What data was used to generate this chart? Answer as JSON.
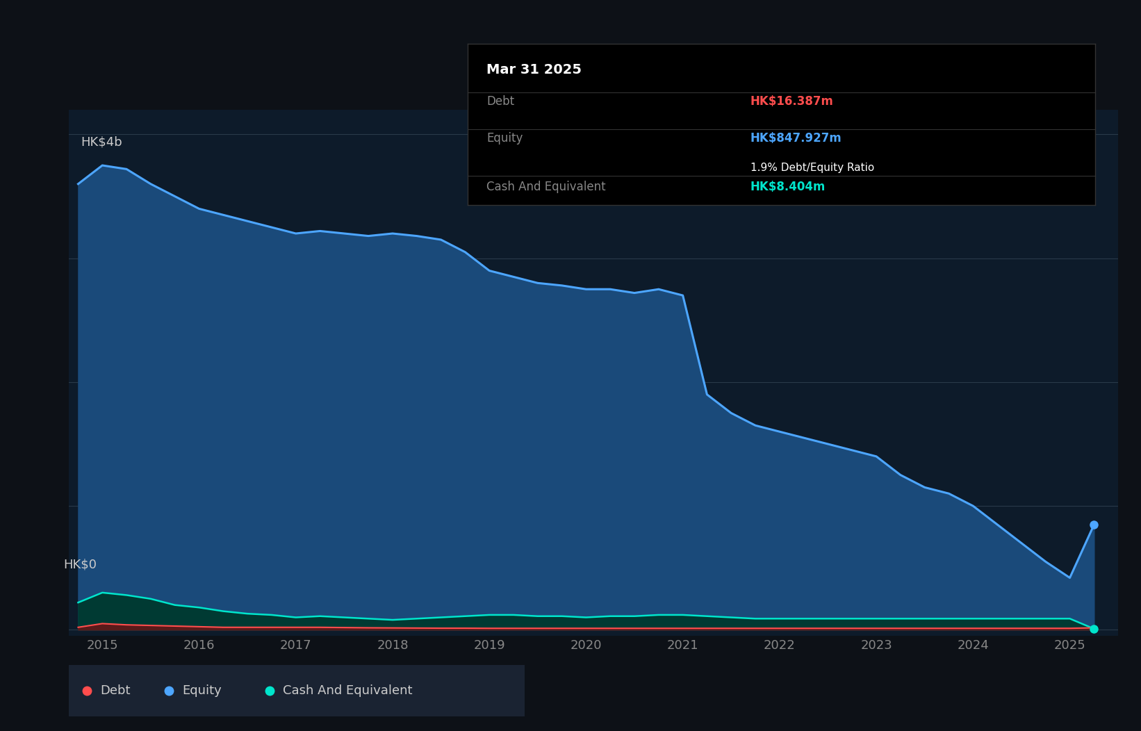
{
  "bg_color": "#0d1117",
  "plot_bg_color": "#0d1b2a",
  "grid_color": "#2a3a4a",
  "ylabel_text": "HK$4b",
  "y0_label": "HK$0",
  "title_box": {
    "date": "Mar 31 2025",
    "debt_label": "Debt",
    "debt_value": "HK$16.387m",
    "debt_color": "#ff4d4d",
    "equity_label": "Equity",
    "equity_value": "HK$847.927m",
    "equity_color": "#4da6ff",
    "ratio_text": "1.9% Debt/Equity Ratio",
    "ratio_color": "#ffffff",
    "cash_label": "Cash And Equivalent",
    "cash_value": "HK$8.404m",
    "cash_color": "#00e5cc",
    "box_bg": "#000000",
    "label_color": "#888888",
    "date_color": "#ffffff"
  },
  "legend": {
    "debt_label": "Debt",
    "debt_color": "#ff4d4d",
    "equity_label": "Equity",
    "equity_color": "#4da6ff",
    "cash_label": "Cash And Equivalent",
    "cash_color": "#00e5cc",
    "bg_color": "#1a2332"
  },
  "equity_line_color": "#4da6ff",
  "equity_fill_color": "#1a4a7a",
  "debt_line_color": "#ff4d4d",
  "debt_fill_color": "#5a1a1a",
  "cash_line_color": "#00e5cc",
  "cash_fill_color": "#003a33",
  "years": [
    2014.75,
    2015.0,
    2015.25,
    2015.5,
    2015.75,
    2016.0,
    2016.25,
    2016.5,
    2016.75,
    2017.0,
    2017.25,
    2017.5,
    2017.75,
    2018.0,
    2018.25,
    2018.5,
    2018.75,
    2019.0,
    2019.25,
    2019.5,
    2019.75,
    2020.0,
    2020.25,
    2020.5,
    2020.75,
    2021.0,
    2021.25,
    2021.5,
    2021.75,
    2022.0,
    2022.25,
    2022.5,
    2022.75,
    2023.0,
    2023.25,
    2023.5,
    2023.75,
    2024.0,
    2024.25,
    2024.5,
    2024.75,
    2025.0,
    2025.25
  ],
  "equity": [
    3.6,
    3.75,
    3.72,
    3.6,
    3.5,
    3.4,
    3.35,
    3.3,
    3.25,
    3.2,
    3.22,
    3.2,
    3.18,
    3.2,
    3.18,
    3.15,
    3.05,
    2.9,
    2.85,
    2.8,
    2.78,
    2.75,
    2.75,
    2.72,
    2.75,
    2.7,
    1.9,
    1.75,
    1.65,
    1.6,
    1.55,
    1.5,
    1.45,
    1.4,
    1.25,
    1.15,
    1.1,
    1.0,
    0.85,
    0.7,
    0.55,
    0.42,
    0.848
  ],
  "debt": [
    0.02,
    0.05,
    0.04,
    0.035,
    0.03,
    0.025,
    0.02,
    0.02,
    0.02,
    0.02,
    0.02,
    0.018,
    0.016,
    0.015,
    0.014,
    0.013,
    0.013,
    0.012,
    0.012,
    0.012,
    0.012,
    0.012,
    0.012,
    0.012,
    0.012,
    0.012,
    0.012,
    0.012,
    0.012,
    0.012,
    0.012,
    0.012,
    0.012,
    0.012,
    0.012,
    0.012,
    0.012,
    0.012,
    0.012,
    0.012,
    0.012,
    0.012,
    0.016
  ],
  "cash": [
    0.22,
    0.3,
    0.28,
    0.25,
    0.2,
    0.18,
    0.15,
    0.13,
    0.12,
    0.1,
    0.11,
    0.1,
    0.09,
    0.08,
    0.09,
    0.1,
    0.11,
    0.12,
    0.12,
    0.11,
    0.11,
    0.1,
    0.11,
    0.11,
    0.12,
    0.12,
    0.11,
    0.1,
    0.09,
    0.09,
    0.09,
    0.09,
    0.09,
    0.09,
    0.09,
    0.09,
    0.09,
    0.09,
    0.09,
    0.09,
    0.09,
    0.09,
    0.008
  ],
  "xlim": [
    2014.65,
    2025.5
  ],
  "ylim": [
    -0.05,
    4.2
  ],
  "xtick_years": [
    2015,
    2016,
    2017,
    2018,
    2019,
    2020,
    2021,
    2022,
    2023,
    2024,
    2025
  ]
}
